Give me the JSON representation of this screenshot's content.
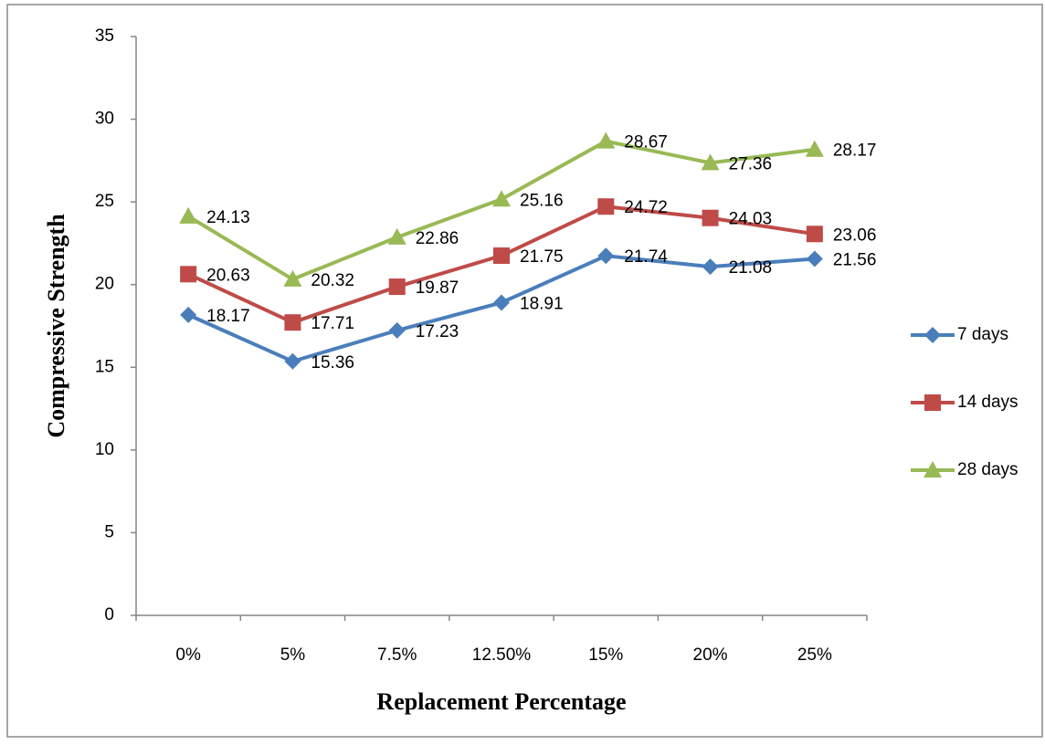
{
  "chart_data": {
    "type": "line",
    "x_label": "Replacement Percentage",
    "y_label": "Compressive Strength",
    "categories": [
      "0%",
      "5%",
      "7.5%",
      "12.50%",
      "15%",
      "20%",
      "25%"
    ],
    "series": [
      {
        "name": "7 days",
        "color": "#4a7ebb",
        "marker": "diamond",
        "values": [
          18.17,
          15.36,
          17.23,
          18.91,
          21.74,
          21.08,
          21.56
        ]
      },
      {
        "name": "14 days",
        "color": "#be4b48",
        "marker": "square",
        "values": [
          20.63,
          17.71,
          19.87,
          21.75,
          24.72,
          24.03,
          23.06
        ]
      },
      {
        "name": "28 days",
        "color": "#98b954",
        "marker": "triangle",
        "values": [
          24.13,
          20.32,
          22.86,
          25.16,
          28.67,
          27.36,
          28.17
        ]
      }
    ],
    "ylim": [
      0,
      35
    ],
    "yticks": [
      0,
      5,
      10,
      15,
      20,
      25,
      30,
      35
    ],
    "grid": false,
    "legend": "right"
  }
}
